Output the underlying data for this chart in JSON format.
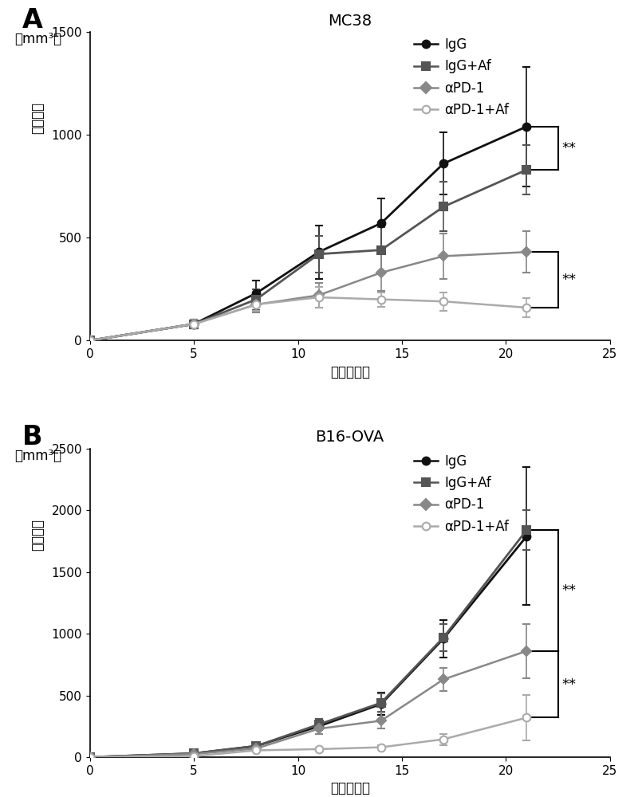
{
  "panel_A": {
    "title": "MC38",
    "xlabel": "时间（天）",
    "ylabel_top": "（mm³）",
    "ylabel_main": "肿瘾体积",
    "xlim": [
      0,
      25
    ],
    "ylim": [
      0,
      1500
    ],
    "yticks": [
      0,
      500,
      1000,
      1500
    ],
    "xticks": [
      0,
      5,
      10,
      15,
      20,
      25
    ],
    "series": {
      "IgG": {
        "x": [
          0,
          5,
          8,
          11,
          14,
          17,
          21
        ],
        "y": [
          0,
          80,
          230,
          430,
          570,
          860,
          1040
        ],
        "yerr": [
          0,
          20,
          60,
          130,
          120,
          150,
          290
        ],
        "color": "#111111",
        "marker": "o",
        "markersize": 7,
        "linewidth": 2.0,
        "open": false
      },
      "IgG+Af": {
        "x": [
          0,
          5,
          8,
          11,
          14,
          17,
          21
        ],
        "y": [
          0,
          80,
          200,
          420,
          440,
          650,
          830
        ],
        "yerr": [
          0,
          20,
          50,
          90,
          110,
          120,
          120
        ],
        "color": "#555555",
        "marker": "s",
        "markersize": 7,
        "linewidth": 2.0,
        "open": false
      },
      "αPD-1": {
        "x": [
          0,
          5,
          8,
          11,
          14,
          17,
          21
        ],
        "y": [
          0,
          80,
          175,
          220,
          330,
          410,
          430
        ],
        "yerr": [
          0,
          20,
          40,
          60,
          90,
          110,
          100
        ],
        "color": "#888888",
        "marker": "D",
        "markersize": 6,
        "linewidth": 1.8,
        "open": false
      },
      "αPD-1+Af": {
        "x": [
          0,
          5,
          8,
          11,
          14,
          17,
          21
        ],
        "y": [
          0,
          80,
          175,
          210,
          200,
          190,
          160
        ],
        "yerr": [
          0,
          20,
          30,
          50,
          35,
          45,
          45
        ],
        "color": "#aaaaaa",
        "marker": "o",
        "markersize": 7,
        "linewidth": 1.8,
        "open": true
      }
    },
    "bracket1": {
      "x_data": 21,
      "x_bracket": 22.5,
      "y_top": 1040,
      "y_bot": 830,
      "label": "**"
    },
    "bracket2": {
      "x_data": 21,
      "x_bracket": 22.5,
      "y_top": 430,
      "y_bot": 160,
      "label": "**"
    }
  },
  "panel_B": {
    "title": "B16-OVA",
    "xlabel": "时间（天）",
    "ylabel_top": "（mm³）",
    "ylabel_main": "肿瘾体积",
    "xlim": [
      0,
      25
    ],
    "ylim": [
      0,
      2500
    ],
    "yticks": [
      0,
      500,
      1000,
      1500,
      2000,
      2500
    ],
    "xticks": [
      0,
      5,
      10,
      15,
      20,
      25
    ],
    "series": {
      "IgG": {
        "x": [
          0,
          5,
          8,
          11,
          14,
          17,
          21
        ],
        "y": [
          0,
          30,
          90,
          250,
          430,
          960,
          1790
        ],
        "yerr": [
          0,
          5,
          25,
          60,
          90,
          150,
          560
        ],
        "color": "#111111",
        "marker": "o",
        "markersize": 7,
        "linewidth": 2.0,
        "open": false
      },
      "IgG+Af": {
        "x": [
          0,
          5,
          8,
          11,
          14,
          17,
          21
        ],
        "y": [
          0,
          30,
          90,
          265,
          440,
          970,
          1840
        ],
        "yerr": [
          0,
          5,
          20,
          45,
          75,
          110,
          160
        ],
        "color": "#555555",
        "marker": "s",
        "markersize": 7,
        "linewidth": 2.0,
        "open": false
      },
      "αPD-1": {
        "x": [
          0,
          5,
          8,
          11,
          14,
          17,
          21
        ],
        "y": [
          0,
          25,
          70,
          230,
          295,
          630,
          860
        ],
        "yerr": [
          0,
          5,
          15,
          45,
          65,
          95,
          220
        ],
        "color": "#888888",
        "marker": "D",
        "markersize": 6,
        "linewidth": 1.8,
        "open": false
      },
      "αPD-1+Af": {
        "x": [
          0,
          5,
          8,
          11,
          14,
          17,
          21
        ],
        "y": [
          0,
          8,
          55,
          65,
          80,
          145,
          320
        ],
        "yerr": [
          0,
          3,
          10,
          12,
          18,
          45,
          185
        ],
        "color": "#aaaaaa",
        "marker": "o",
        "markersize": 7,
        "linewidth": 1.8,
        "open": true
      }
    },
    "bracket1": {
      "x_data": 21,
      "x_bracket": 22.5,
      "y_top": 1840,
      "y_bot": 860,
      "label": "**"
    },
    "bracket2": {
      "x_data": 21,
      "x_bracket": 22.5,
      "y_top": 860,
      "y_bot": 320,
      "label": "**"
    }
  },
  "legend_labels": [
    "IgG",
    "IgG+Af",
    "αPD-1",
    "αPD-1+Af"
  ],
  "legend_colors": [
    "#111111",
    "#555555",
    "#888888",
    "#aaaaaa"
  ],
  "legend_markers": [
    "o",
    "s",
    "D",
    "o"
  ],
  "legend_open": [
    false,
    false,
    false,
    true
  ],
  "label_A": "A",
  "label_B": "B",
  "label_fontsize": 24,
  "title_fontsize": 14,
  "axis_fontsize": 12,
  "tick_fontsize": 11,
  "legend_fontsize": 12
}
